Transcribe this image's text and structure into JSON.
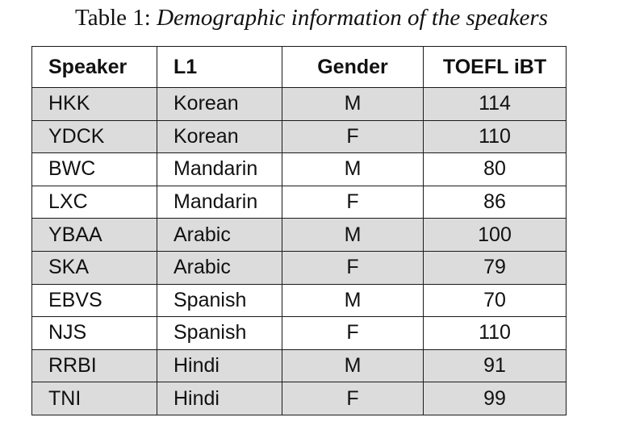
{
  "caption": {
    "lead": "Table 1: ",
    "title": "Demographic information of the speakers"
  },
  "table": {
    "headers": [
      "Speaker",
      "L1",
      "Gender",
      "TOEFL iBT"
    ],
    "rows": [
      [
        "HKK",
        "Korean",
        "M",
        "114"
      ],
      [
        "YDCK",
        "Korean",
        "F",
        "110"
      ],
      [
        "BWC",
        "Mandarin",
        "M",
        "80"
      ],
      [
        "LXC",
        "Mandarin",
        "F",
        "86"
      ],
      [
        "YBAA",
        "Arabic",
        "M",
        "100"
      ],
      [
        "SKA",
        "Arabic",
        "F",
        "79"
      ],
      [
        "EBVS",
        "Spanish",
        "M",
        "70"
      ],
      [
        "NJS",
        "Spanish",
        "F",
        "110"
      ],
      [
        "RRBI",
        "Hindi",
        "M",
        "91"
      ],
      [
        "TNI",
        "Hindi",
        "F",
        "99"
      ]
    ],
    "shaded_row_color": "#dcdcdc",
    "shaded_rows": [
      0,
      4,
      8
    ]
  }
}
